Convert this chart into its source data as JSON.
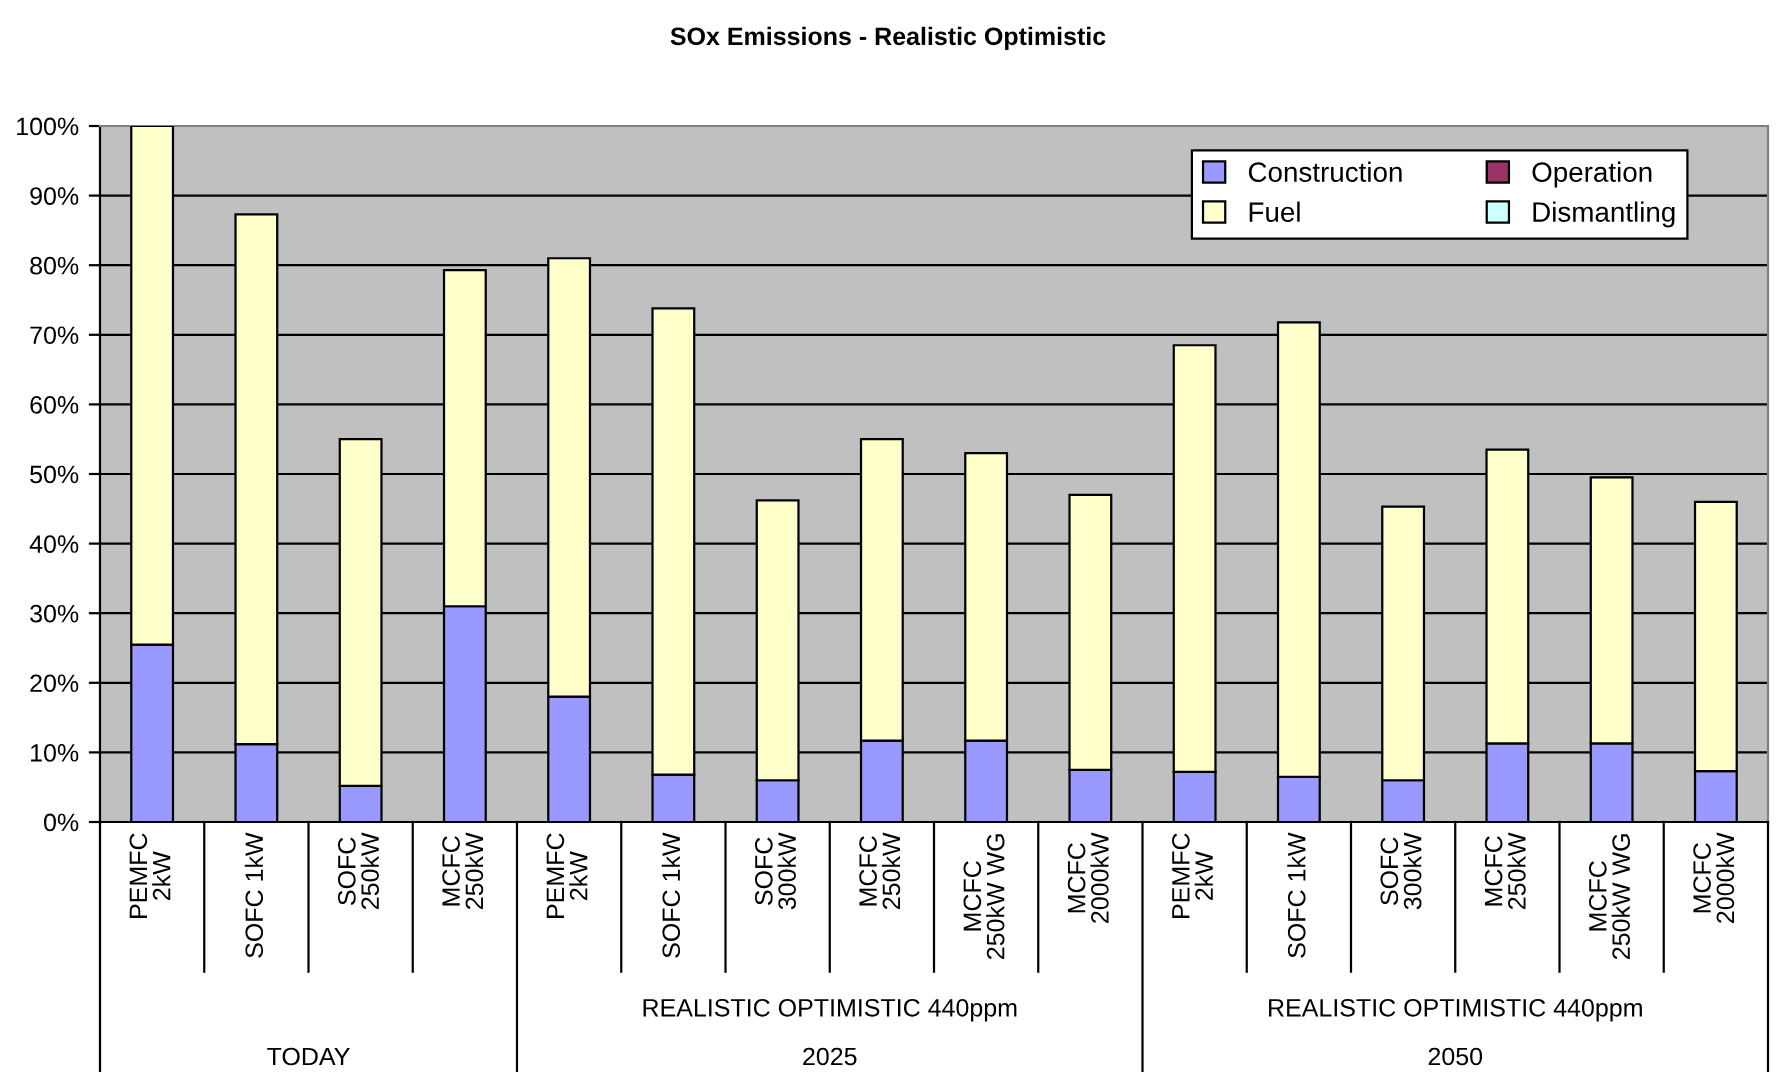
{
  "chart_data": {
    "type": "bar",
    "stacked": true,
    "title": "SOx Emissions - Realistic Optimistic",
    "categories": [
      "PEMFC\n2kW",
      "SOFC 1kW",
      "SOFC\n250kW",
      "MCFC\n250kW",
      "PEMFC\n2kW",
      "SOFC 1kW",
      "SOFC\n300kW",
      "MCFC\n250kW",
      "MCFC\n250kW WG",
      "MCFC\n2000kW",
      "PEMFC\n2kW",
      "SOFC 1kW",
      "SOFC\n300kW",
      "MCFC\n250kW",
      "MCFC\n250kW WG",
      "MCFC\n2000kW"
    ],
    "series": [
      {
        "name": "Construction",
        "color": "#9999ff",
        "values": [
          25.5,
          11.2,
          5.2,
          31,
          18,
          6.8,
          6,
          11.7,
          11.7,
          7.5,
          7.2,
          6.5,
          6,
          11.3,
          11.3,
          7.3
        ]
      },
      {
        "name": "Operation",
        "color": "#993366",
        "values": [
          0,
          0,
          0,
          0,
          0,
          null,
          0,
          0,
          0,
          null,
          0,
          null,
          0,
          0,
          0,
          0
        ]
      },
      {
        "name": "Fuel",
        "color": "#ffffcc",
        "values": [
          74.5,
          76.1,
          49.8,
          48.3,
          63,
          67,
          40.2,
          43.3,
          41.3,
          39.5,
          61.3,
          65.3,
          39.3,
          42.2,
          38.2,
          38.7
        ]
      },
      {
        "name": "Dismantling",
        "color": "#ccffff",
        "values": [
          0,
          0,
          0,
          0,
          0,
          0,
          0,
          0,
          0,
          0,
          0,
          0,
          0,
          0,
          0,
          0
        ]
      }
    ],
    "ylim": [
      0,
      100
    ],
    "yticks": [
      {
        "value": 0,
        "label": "0%"
      },
      {
        "value": 10,
        "label": "10%"
      },
      {
        "value": 20,
        "label": "20%"
      },
      {
        "value": 30,
        "label": "30%"
      },
      {
        "value": 40,
        "label": "40%"
      },
      {
        "value": 50,
        "label": "50%"
      },
      {
        "value": 60,
        "label": "60%"
      },
      {
        "value": 70,
        "label": "70%"
      },
      {
        "value": 80,
        "label": "80%"
      },
      {
        "value": 90,
        "label": "90%"
      },
      {
        "value": 100,
        "label": "100%"
      }
    ],
    "grid": "y",
    "legend": "top right",
    "annotations": [
      "REALISTIC OPTIMISTIC 440ppm",
      "REALISTIC OPTIMISTIC 440ppm",
      "TODAY",
      "2025",
      "2050"
    ]
  }
}
